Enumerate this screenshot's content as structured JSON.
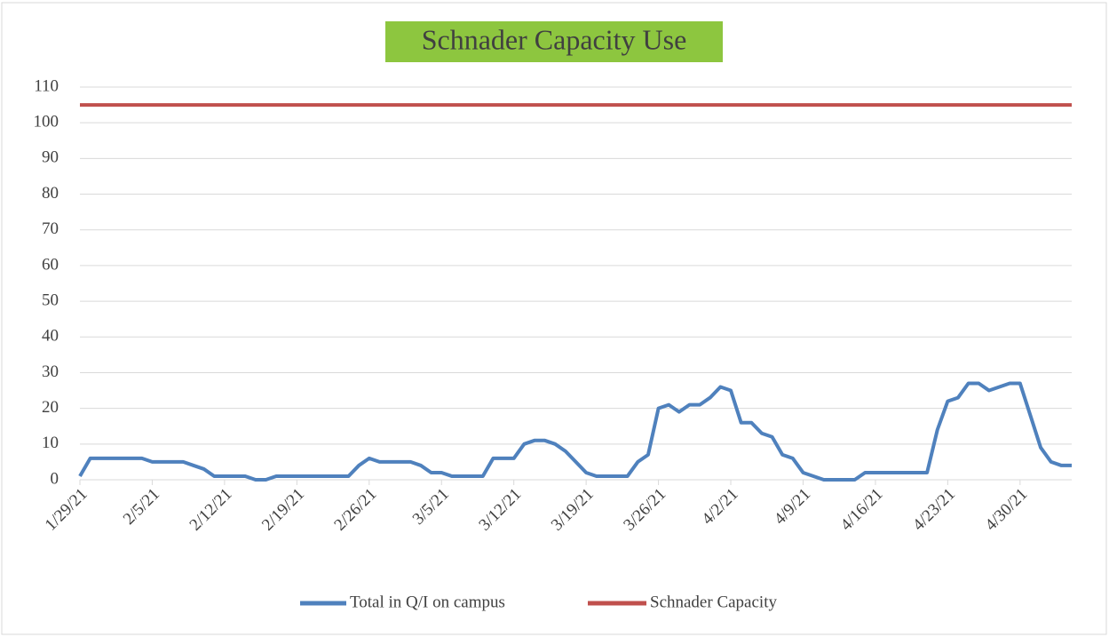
{
  "chart_data": {
    "type": "line",
    "title": "Schnader Capacity Use",
    "categories": [
      "1/29/21",
      null,
      null,
      null,
      null,
      null,
      null,
      "2/5/21",
      null,
      null,
      null,
      null,
      null,
      null,
      "2/12/21",
      null,
      null,
      null,
      null,
      null,
      null,
      "2/19/21",
      null,
      null,
      null,
      null,
      null,
      null,
      "2/26/21",
      null,
      null,
      null,
      null,
      null,
      null,
      "3/5/21",
      null,
      null,
      null,
      null,
      null,
      null,
      "3/12/21",
      null,
      null,
      null,
      null,
      null,
      null,
      "3/19/21",
      null,
      null,
      null,
      null,
      null,
      null,
      "3/26/21",
      null,
      null,
      null,
      null,
      null,
      null,
      "4/2/21",
      null,
      null,
      null,
      null,
      null,
      null,
      "4/9/21",
      null,
      null,
      null,
      null,
      null,
      null,
      "4/16/21",
      null,
      null,
      null,
      null,
      null,
      null,
      "4/23/21",
      null,
      null,
      null,
      null,
      null,
      null,
      "4/30/21",
      null,
      null,
      null,
      null,
      null
    ],
    "series": [
      {
        "name": "Total in Q/I on campus",
        "color": "#4f81bd",
        "values": [
          1,
          6,
          6,
          6,
          6,
          6,
          6,
          5,
          5,
          5,
          5,
          4,
          3,
          1,
          1,
          1,
          1,
          0,
          0,
          1,
          1,
          1,
          1,
          1,
          1,
          1,
          1,
          4,
          6,
          5,
          5,
          5,
          5,
          4,
          2,
          2,
          1,
          1,
          1,
          1,
          6,
          6,
          6,
          10,
          11,
          11,
          10,
          8,
          5,
          2,
          1,
          1,
          1,
          1,
          5,
          7,
          20,
          21,
          19,
          21,
          21,
          23,
          26,
          25,
          16,
          16,
          13,
          12,
          7,
          6,
          2,
          1,
          0,
          0,
          0,
          0,
          2,
          2,
          2,
          2,
          2,
          2,
          2,
          14,
          22,
          23,
          27,
          27,
          25,
          26,
          27,
          27,
          18,
          9,
          5,
          4,
          4
        ]
      },
      {
        "name": "Schnader Capacity",
        "color": "#c0504d",
        "values": [
          105,
          105,
          105,
          105,
          105,
          105,
          105,
          105,
          105,
          105,
          105,
          105,
          105,
          105,
          105,
          105,
          105,
          105,
          105,
          105,
          105,
          105,
          105,
          105,
          105,
          105,
          105,
          105,
          105,
          105,
          105,
          105,
          105,
          105,
          105,
          105,
          105,
          105,
          105,
          105,
          105,
          105,
          105,
          105,
          105,
          105,
          105,
          105,
          105,
          105,
          105,
          105,
          105,
          105,
          105,
          105,
          105,
          105,
          105,
          105,
          105,
          105,
          105,
          105,
          105,
          105,
          105,
          105,
          105,
          105,
          105,
          105,
          105,
          105,
          105,
          105,
          105,
          105,
          105,
          105,
          105,
          105,
          105,
          105,
          105,
          105,
          105,
          105,
          105,
          105,
          105,
          105,
          105,
          105,
          105,
          105,
          105
        ]
      }
    ],
    "ylim": [
      0,
      110
    ],
    "yticks": [
      0,
      10,
      20,
      30,
      40,
      50,
      60,
      70,
      80,
      90,
      100,
      110
    ],
    "grid": true,
    "legend": "bottom",
    "title_background": "#8dc63f"
  }
}
